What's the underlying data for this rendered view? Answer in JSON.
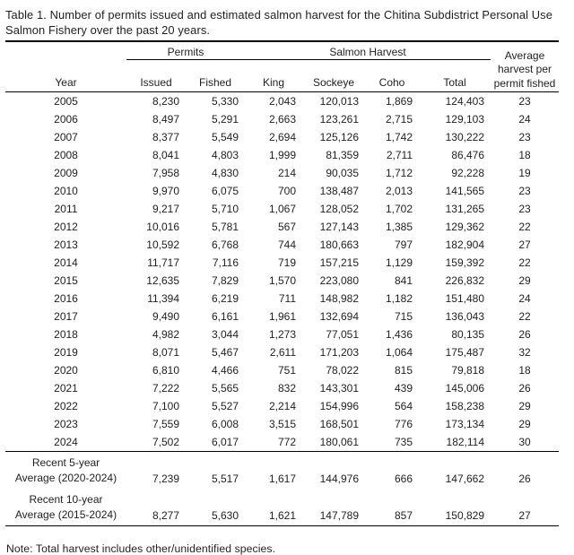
{
  "title": "Table 1. Number of permits issued and estimated salmon harvest for the Chitina Subdistrict Personal Use Salmon Fishery over the past 20 years.",
  "table": {
    "group_headers": {
      "permits": "Permits",
      "salmon_harvest": "Salmon Harvest"
    },
    "avg_header_lines": [
      "Average",
      "harvest per",
      "permit fished"
    ],
    "columns": [
      "Year",
      "Issued",
      "Fished",
      "King",
      "Sockeye",
      "Coho",
      "Total"
    ],
    "rows": [
      [
        "2005",
        "8,230",
        "5,330",
        "2,043",
        "120,013",
        "1,869",
        "124,403",
        "23"
      ],
      [
        "2006",
        "8,497",
        "5,291",
        "2,663",
        "123,261",
        "2,715",
        "129,103",
        "24"
      ],
      [
        "2007",
        "8,377",
        "5,549",
        "2,694",
        "125,126",
        "1,742",
        "130,222",
        "23"
      ],
      [
        "2008",
        "8,041",
        "4,803",
        "1,999",
        "81,359",
        "2,711",
        "86,476",
        "18"
      ],
      [
        "2009",
        "7,958",
        "4,830",
        "214",
        "90,035",
        "1,712",
        "92,228",
        "19"
      ],
      [
        "2010",
        "9,970",
        "6,075",
        "700",
        "138,487",
        "2,013",
        "141,565",
        "23"
      ],
      [
        "2011",
        "9,217",
        "5,710",
        "1,067",
        "128,052",
        "1,702",
        "131,265",
        "23"
      ],
      [
        "2012",
        "10,016",
        "5,781",
        "567",
        "127,143",
        "1,385",
        "129,362",
        "22"
      ],
      [
        "2013",
        "10,592",
        "6,768",
        "744",
        "180,663",
        "797",
        "182,904",
        "27"
      ],
      [
        "2014",
        "11,717",
        "7,116",
        "719",
        "157,215",
        "1,129",
        "159,392",
        "22"
      ],
      [
        "2015",
        "12,635",
        "7,829",
        "1,570",
        "223,080",
        "841",
        "226,832",
        "29"
      ],
      [
        "2016",
        "11,394",
        "6,219",
        "711",
        "148,982",
        "1,182",
        "151,480",
        "24"
      ],
      [
        "2017",
        "9,490",
        "6,161",
        "1,961",
        "132,694",
        "715",
        "136,043",
        "22"
      ],
      [
        "2018",
        "4,982",
        "3,044",
        "1,273",
        "77,051",
        "1,436",
        "80,135",
        "26"
      ],
      [
        "2019",
        "8,071",
        "5,467",
        "2,611",
        "171,203",
        "1,064",
        "175,487",
        "32"
      ],
      [
        "2020",
        "6,810",
        "4,466",
        "751",
        "78,022",
        "815",
        "79,818",
        "18"
      ],
      [
        "2021",
        "7,222",
        "5,565",
        "832",
        "143,301",
        "439",
        "145,006",
        "26"
      ],
      [
        "2022",
        "7,100",
        "5,527",
        "2,214",
        "154,996",
        "564",
        "158,238",
        "29"
      ],
      [
        "2023",
        "7,559",
        "6,008",
        "3,515",
        "168,501",
        "776",
        "173,134",
        "29"
      ],
      [
        "2024",
        "7,502",
        "6,017",
        "772",
        "180,061",
        "735",
        "182,114",
        "30"
      ]
    ],
    "summary_rows": [
      {
        "label_lines": [
          "Recent 5-year",
          "Average (2020-2024)"
        ],
        "values": [
          "7,239",
          "5,517",
          "1,617",
          "144,976",
          "666",
          "147,662",
          "26"
        ]
      },
      {
        "label_lines": [
          "Recent 10-year",
          "Average (2015-2024)"
        ],
        "values": [
          "8,277",
          "5,630",
          "1,621",
          "147,789",
          "857",
          "150,829",
          "27"
        ]
      }
    ],
    "note": "Note: Total harvest includes other/unidentified species."
  }
}
